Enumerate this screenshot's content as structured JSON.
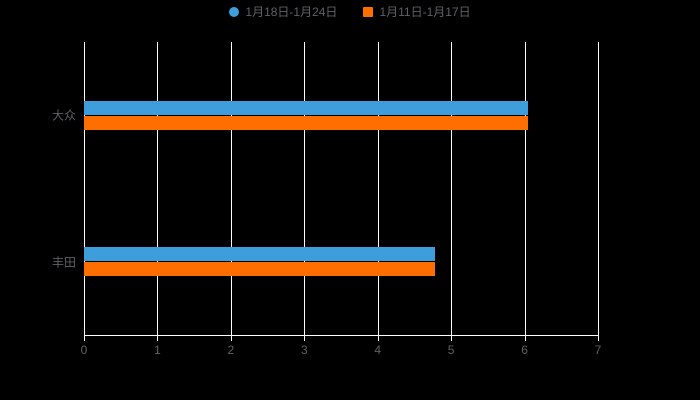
{
  "chart_data": {
    "type": "bar",
    "orientation": "horizontal",
    "title": "",
    "categories": [
      "大众",
      "丰田"
    ],
    "series": [
      {
        "name": "1月18日-1月24日",
        "color": "#3D9EDB",
        "marker": "circle",
        "values": [
          6.05,
          4.78
        ]
      },
      {
        "name": "1月11日-1月17日",
        "color": "#FF6F00",
        "marker": "square",
        "values": [
          6.05,
          4.78
        ]
      }
    ],
    "xlim": [
      0,
      7
    ],
    "x_ticks": [
      "0",
      "1",
      "2",
      "3",
      "4",
      "5",
      "6",
      "7"
    ],
    "grid": true,
    "legend_position": "top",
    "background_color": "#000000",
    "gridline_color": "#FFFFFF",
    "axis_color": "#FFFFFF",
    "text_color": "#5E6166"
  }
}
